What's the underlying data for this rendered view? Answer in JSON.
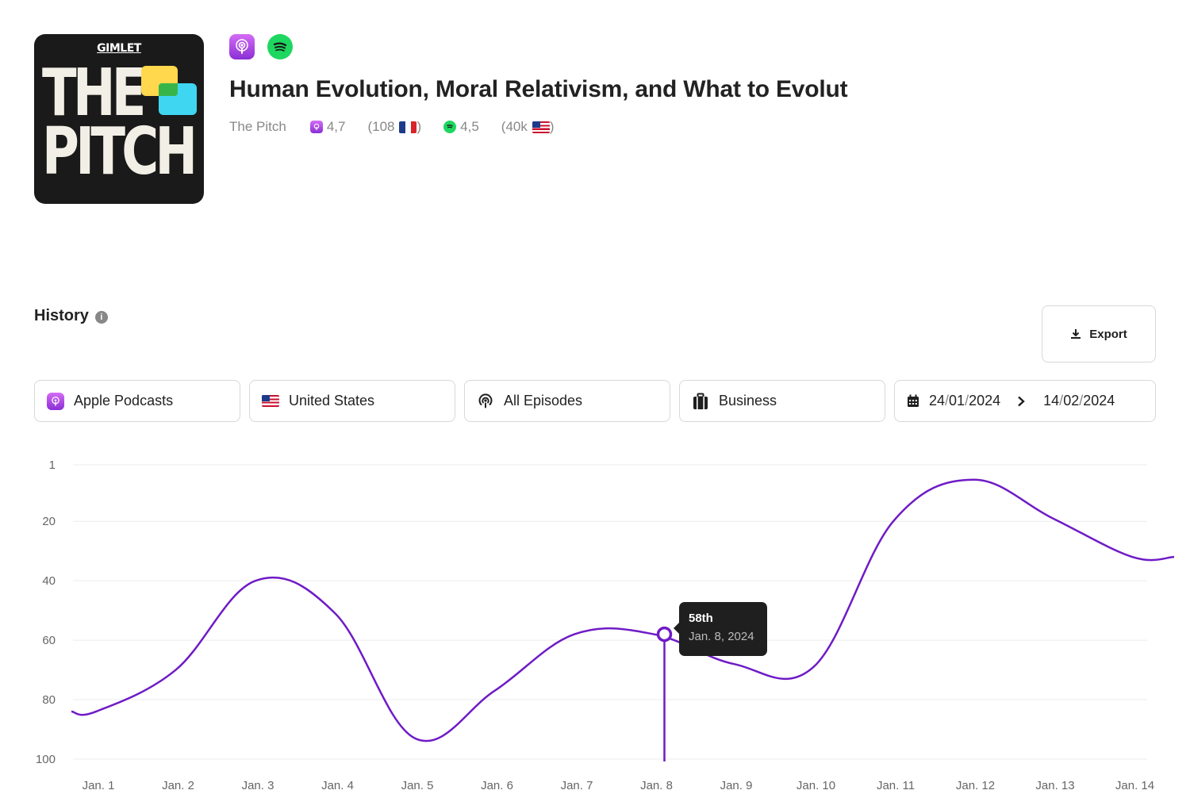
{
  "podcast": {
    "cover_brand": "GIMLET",
    "cover_line1": "THE",
    "cover_line2": "PITCH",
    "title": "Human Evolution, Moral Relativism, and What to Evolut",
    "show": "The Pitch",
    "apple_rating": "4,7",
    "apple_count": "(108",
    "apple_close": ")",
    "spotify_rating": "4,5",
    "spotify_count": "(40k",
    "spotify_close": ")"
  },
  "history": {
    "heading": "History",
    "info": "i",
    "export_label": "Export"
  },
  "filters": {
    "platform": "Apple Podcasts",
    "country": "United States",
    "episodes": "All Episodes",
    "category": "Business",
    "date_start_day": "24",
    "date_start_rest": "01",
    "date_start_year": "2024",
    "date_end_day": "14",
    "date_end_rest": "02",
    "date_end_year": "2024",
    "date_sep": "/"
  },
  "colors": {
    "line": "#6f1bc6",
    "apple_purple": "#9b3ee0",
    "spotify_green": "#1ed760"
  },
  "chart_data": {
    "type": "line",
    "categories": [
      "Jan. 1",
      "Jan. 2",
      "Jan. 3",
      "Jan. 4",
      "Jan. 5",
      "Jan. 6",
      "Jan. 7",
      "Jan. 8",
      "Jan. 9",
      "Jan. 10",
      "Jan. 11",
      "Jan. 12",
      "Jan. 13",
      "Jan. 14"
    ],
    "y_ticks": [
      "1",
      "20",
      "40",
      "60",
      "80",
      "100"
    ],
    "y_tick_values": [
      1,
      20,
      40,
      60,
      80,
      100
    ],
    "series": [
      {
        "values": [
          84,
          70,
          40,
          51,
          93,
          77,
          58,
          58,
          68,
          69,
          20,
          6,
          19,
          32
        ]
      }
    ],
    "ylim": [
      1,
      100
    ],
    "y_inverted": true,
    "grid": true,
    "tooltip": {
      "value": "58th",
      "date": "Jan. 8, 2024",
      "index": 7
    }
  }
}
